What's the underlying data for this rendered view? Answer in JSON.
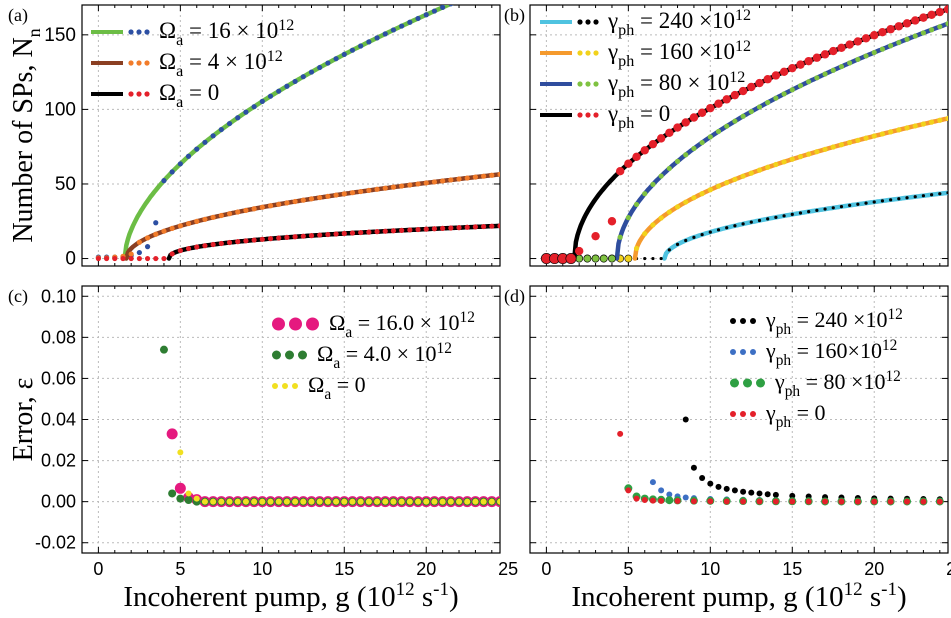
{
  "colors": {
    "green": "#6cbd45",
    "brown": "#8b3f22",
    "orange": "#f27c2a",
    "black": "#000000",
    "red": "#e4202a",
    "blue": "#2c4fa3",
    "cyan": "#4fc3e0",
    "lorange": "#f59a2d",
    "yellow": "#f2d21b",
    "ygreen": "#7fc241",
    "dblue": "#2f4d9e",
    "pink": "#e5197f",
    "dgreen": "#2e7d32",
    "yelp": "#f1e020",
    "pblue": "#3d6fc4",
    "pgreen": "#2ea043"
  },
  "chart_data": [
    {
      "panel": "a",
      "panel_label": "(a)",
      "type": "line",
      "ylabel": "Number of SPs, N",
      "ylabel_sub": "n",
      "xlim": [
        -1,
        24.5
      ],
      "ylim": [
        -5,
        170
      ],
      "yticks": [
        "0",
        "50",
        "100",
        "150"
      ],
      "ytick_values": [
        0,
        50,
        100,
        150
      ],
      "legend": [
        {
          "main": "Ω",
          "sub": "a",
          "rest": " = 16 × 10",
          "sup": "12",
          "line": "green",
          "dot": "blue"
        },
        {
          "main": "Ω",
          "sub": "a",
          "rest": " = 4 × 10",
          "sup": "12",
          "line": "brown",
          "dot": "orange"
        },
        {
          "main": "Ω",
          "sub": "a",
          "rest": " = 0",
          "sup": "",
          "line": "black",
          "dot": "red"
        }
      ],
      "series": [
        {
          "line": {
            "x0": 1.6,
            "k": 32,
            "p": 0.56
          },
          "dots": {
            "x": [
              0,
              0.5,
              1,
              1.5,
              2,
              2.5,
              3,
              3.5
            ],
            "y": [
              1,
              1,
              1,
              1,
              2,
              4,
              8,
              24
            ]
          },
          "dots_from": 4,
          "line_color": "green",
          "dot_color": "blue"
        },
        {
          "line": {
            "x0": 1.7,
            "k": 12.2,
            "p": 0.49
          },
          "dots": {
            "x": [
              0,
              0.5,
              1,
              1.5,
              2
            ],
            "y": [
              0.5,
              0.5,
              1,
              1.5,
              3
            ]
          },
          "dots_from": 2.5,
          "line_color": "brown",
          "dot_color": "orange"
        },
        {
          "line": {
            "x0": 4.3,
            "k": 6.2,
            "p": 0.42
          },
          "dots": {
            "x": [
              0,
              0.5,
              1,
              1.5,
              2,
              2.5,
              3,
              3.5,
              4
            ],
            "y": [
              0,
              0,
              0,
              0,
              0,
              0,
              0,
              0,
              0
            ]
          },
          "dots_from": 4.5,
          "line_color": "black",
          "dot_color": "red"
        }
      ]
    },
    {
      "panel": "b",
      "panel_label": "(b)",
      "type": "line",
      "xlim": [
        -1,
        24.5
      ],
      "ylim": [
        -5,
        170
      ],
      "legend": [
        {
          "main": "γ",
          "sub": "ph",
          "rest": " = 240 ×10",
          "sup": "12",
          "line": "cyan",
          "dot": "black"
        },
        {
          "main": "γ",
          "sub": "ph",
          "rest": " = 160 ×10",
          "sup": "12",
          "line": "lorange",
          "dot": "yellow"
        },
        {
          "main": "γ",
          "sub": "ph",
          "rest": " = 80 × 10",
          "sup": "12",
          "line": "dblue",
          "dot": "ygreen"
        },
        {
          "main": "γ",
          "sub": "ph",
          "rest": " = 0",
          "sup": "",
          "line": "black",
          "dot": "red"
        }
      ],
      "series": [
        {
          "line": {
            "x0": 7.2,
            "k": 10.6,
            "p": 0.5
          },
          "dots": {
            "x": [
              0,
              0.5,
              1,
              1.5,
              2,
              2.5,
              3,
              3.5,
              4,
              4.5,
              5,
              5.5,
              6,
              6.5,
              7
            ],
            "y": [
              0,
              0,
              0,
              0,
              0,
              0,
              0,
              0,
              0,
              0,
              0,
              0,
              0,
              0,
              0
            ]
          },
          "dots_from": 7.5,
          "dotted_small": true,
          "line_color": "cyan",
          "dot_color": "black"
        },
        {
          "line": {
            "x0": 5.4,
            "k": 21.5,
            "p": 0.5
          },
          "dots": {
            "x": [
              0,
              0.5,
              1,
              1.5,
              2,
              2.5,
              3,
              3.5,
              4,
              4.5,
              5
            ],
            "y": [
              0,
              0,
              0,
              0,
              0,
              0,
              0,
              0,
              0,
              0,
              0
            ]
          },
          "dots_from": 5.5,
          "line_color": "lorange",
          "dot_color": "yellow"
        },
        {
          "line": {
            "x0": 4.3,
            "k": 33,
            "p": 0.52
          },
          "dots": {
            "x": [
              0,
              0.5,
              1,
              1.5,
              2,
              2.5,
              3,
              3.5,
              4
            ],
            "y": [
              0,
              0,
              0,
              0,
              0,
              0,
              0,
              0,
              0
            ]
          },
          "dots_from": 4.5,
          "line_color": "dblue",
          "dot_color": "ygreen"
        },
        {
          "line": {
            "x0": 1.7,
            "k": 35,
            "p": 0.5
          },
          "dots": {
            "x": [
              0,
              0.5,
              1,
              1.5,
              2,
              3,
              4
            ],
            "y": [
              0,
              0,
              0,
              0,
              5,
              15,
              25
            ]
          },
          "dots_from": 4.5,
          "big": true,
          "line_color": "black",
          "dot_color": "red"
        }
      ]
    },
    {
      "panel": "c",
      "panel_label": "(c)",
      "type": "scatter",
      "ylabel": "Error, ε",
      "xlabel": "Incoherent pump, g (10",
      "xlabel_sup": "12",
      "xlabel_unit": " s",
      "xlabel_sup2": "-1",
      "xlabel_close": ")",
      "xlim": [
        -1,
        24.5
      ],
      "ylim": [
        -0.025,
        0.105
      ],
      "yticks": [
        "-0.02",
        "0.00",
        "0.02",
        "0.04",
        "0.06",
        "0.08",
        "0.10"
      ],
      "ytick_values": [
        -0.02,
        0,
        0.02,
        0.04,
        0.06,
        0.08,
        0.1
      ],
      "xticks": [
        "0",
        "5",
        "10",
        "15",
        "20",
        "25"
      ],
      "xtick_values": [
        0,
        5,
        10,
        15,
        20,
        25
      ],
      "legend": [
        {
          "main": "Ω",
          "sub": "a",
          "rest": " = 16.0 × 10",
          "sup": "12",
          "dot": "pink",
          "size": "big"
        },
        {
          "main": "Ω",
          "sub": "a",
          "rest": " = 4.0 × 10",
          "sup": "12",
          "dot": "dgreen",
          "size": "mid"
        },
        {
          "main": "Ω",
          "sub": "a",
          "rest": " = 0",
          "sup": "",
          "dot": "yelp",
          "size": "small"
        }
      ],
      "series": [
        {
          "dot_color": "pink",
          "r": 5.5,
          "x": [
            4.5,
            5,
            5.5,
            6
          ],
          "y": [
            0.033,
            0.0065,
            0.002,
            0.001
          ],
          "tail_from": 6.5
        },
        {
          "dot_color": "dgreen",
          "r": 4,
          "x": [
            4,
            4.5,
            5,
            5.5
          ],
          "y": [
            0.074,
            0.004,
            0.0015,
            0.0008
          ],
          "tail_from": 6
        },
        {
          "dot_color": "yelp",
          "r": 3,
          "x": [
            5,
            5.5,
            6
          ],
          "y": [
            0.024,
            0.004,
            0.0015
          ],
          "tail_from": 6.5
        }
      ]
    },
    {
      "panel": "d",
      "panel_label": "(d)",
      "type": "scatter",
      "xlabel": "Incoherent pump, g (10",
      "xlabel_sup": "12",
      "xlabel_unit": " s",
      "xlabel_sup2": "-1",
      "xlabel_close": ")",
      "xlim": [
        -1,
        24.5
      ],
      "ylim": [
        -0.025,
        0.105
      ],
      "xticks": [
        "0",
        "5",
        "10",
        "15",
        "20",
        "25"
      ],
      "xtick_values": [
        0,
        5,
        10,
        15,
        20,
        25
      ],
      "legend": [
        {
          "main": "γ",
          "sub": "ph",
          "rest": " = 240 ×10",
          "sup": "12",
          "dot": "black",
          "size": "small"
        },
        {
          "main": "γ",
          "sub": "ph",
          "rest": " = 160×10",
          "sup": "12",
          "dot": "pblue",
          "size": "small"
        },
        {
          "main": "γ",
          "sub": "ph",
          "rest": " = 80 ×10",
          "sup": "12",
          "dot": "pgreen",
          "size": "mid"
        },
        {
          "main": "γ",
          "sub": "ph",
          "rest": " = 0",
          "sup": "",
          "dot": "red",
          "size": "small"
        }
      ],
      "series": [
        {
          "dot_color": "black",
          "r": 3,
          "x": [
            8.5,
            9,
            9.5,
            10,
            10.5,
            11,
            11.5,
            12,
            12.5,
            13,
            13.5,
            14,
            15,
            16,
            17,
            18,
            19,
            20,
            21,
            22,
            23,
            24,
            25
          ],
          "y": [
            0.04,
            0.0165,
            0.0115,
            0.0088,
            0.0072,
            0.0062,
            0.0055,
            0.0048,
            0.0044,
            0.004,
            0.0036,
            0.0033,
            0.0028,
            0.0025,
            0.0022,
            0.002,
            0.0018,
            0.0016,
            0.0015,
            0.0014,
            0.0013,
            0.0012,
            0.0011
          ]
        },
        {
          "dot_color": "pblue",
          "r": 3,
          "x": [
            6.5,
            7,
            7.5,
            8,
            8.5,
            9,
            10,
            11,
            12,
            13,
            14,
            15,
            16,
            18,
            20,
            22,
            24,
            25
          ],
          "y": [
            0.0095,
            0.0055,
            0.0035,
            0.0026,
            0.002,
            0.0017,
            0.0013,
            0.0011,
            0.0009,
            0.0008,
            0.0007,
            0.0006,
            0.0006,
            0.0005,
            0.0004,
            0.0004,
            0.0003,
            0.0003
          ]
        },
        {
          "dot_color": "pgreen",
          "r": 4,
          "x": [
            5,
            5.5,
            6,
            6.5,
            7,
            7.5,
            8,
            9,
            10,
            11,
            12,
            13,
            14,
            15,
            16,
            17,
            18,
            19,
            20,
            21,
            22,
            23,
            24,
            25
          ],
          "y": [
            0.0065,
            0.0025,
            0.0015,
            0.0011,
            0.0009,
            0.0007,
            0.0006,
            0.0005,
            0.0004,
            0.0003,
            0.0003,
            0.0002,
            0.0002,
            0.0002,
            0.0002,
            0.0001,
            0.0001,
            0.0001,
            0.0001,
            0.0001,
            0.0001,
            0.0001,
            0.0001,
            0.0001
          ]
        },
        {
          "dot_color": "red",
          "r": 3,
          "x": [
            4.5,
            5,
            5.5,
            6,
            6.5,
            7,
            8,
            9,
            10,
            11,
            12,
            13,
            14,
            15,
            16,
            17,
            18,
            19,
            20,
            21,
            22,
            23,
            24,
            25
          ],
          "y": [
            0.033,
            0.0055,
            0.0015,
            0.0008,
            0.0005,
            0.0004,
            0.0003,
            0.0002,
            0.0002,
            0.0001,
            0.0001,
            0.0001,
            0.0001,
            0.0001,
            0.0001,
            0.0001,
            0,
            0,
            0,
            0,
            0,
            0,
            0,
            0
          ]
        }
      ]
    }
  ]
}
